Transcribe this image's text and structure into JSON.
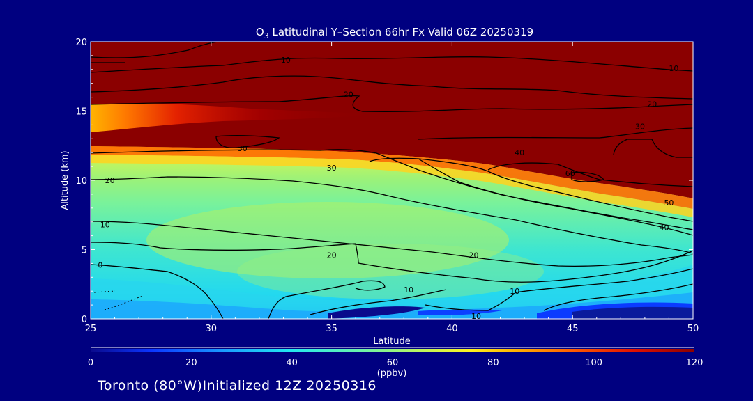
{
  "chart_data": {
    "type": "heatmap",
    "title_prefix": "O",
    "title_subscript": "3",
    "title_rest": " Latitudinal Y–Section 66hr  Fx Valid 06Z 20250319",
    "xlabel": "Latitude",
    "ylabel": "Altitude (km)",
    "xlim": [
      25,
      50
    ],
    "ylim": [
      0,
      20
    ],
    "x_ticks": [
      "25",
      "30",
      "35",
      "40",
      "45",
      "50"
    ],
    "y_ticks": [
      "0",
      "5",
      "10",
      "15",
      "20"
    ],
    "colorbar": {
      "ticks": [
        "0",
        "20",
        "40",
        "60",
        "80",
        "100",
        "120"
      ],
      "unit": "(ppbv)",
      "range": [
        0,
        120
      ],
      "colors": [
        "#0a0a8c",
        "#0b35ff",
        "#1a9bff",
        "#22e8f0",
        "#6df2a8",
        "#bff55a",
        "#fff21e",
        "#ffb400",
        "#ff5a00",
        "#e01000",
        "#8b0000"
      ]
    },
    "contour_labels": [
      {
        "text": "10",
        "lat": 41.0,
        "alt": 0.2
      },
      {
        "text": "10",
        "lat": 38.2,
        "alt": 2.1
      },
      {
        "text": "10",
        "lat": 42.6,
        "alt": 2.0
      },
      {
        "text": "0",
        "lat": 25.4,
        "alt": 3.9
      },
      {
        "text": "10",
        "lat": 25.6,
        "alt": 6.8
      },
      {
        "text": "20",
        "lat": 25.8,
        "alt": 10.0
      },
      {
        "text": "20",
        "lat": 35.0,
        "alt": 4.6
      },
      {
        "text": "20",
        "lat": 40.9,
        "alt": 4.6
      },
      {
        "text": "30",
        "lat": 35.0,
        "alt": 10.9
      },
      {
        "text": "30",
        "lat": 31.3,
        "alt": 12.3
      },
      {
        "text": "30",
        "lat": 47.8,
        "alt": 13.9
      },
      {
        "text": "40",
        "lat": 42.8,
        "alt": 12.0
      },
      {
        "text": "40",
        "lat": 48.8,
        "alt": 6.6
      },
      {
        "text": "50",
        "lat": 49.0,
        "alt": 8.4
      },
      {
        "text": "60",
        "lat": 44.9,
        "alt": 10.5
      },
      {
        "text": "20",
        "lat": 35.7,
        "alt": 16.2
      },
      {
        "text": "20",
        "lat": 48.3,
        "alt": 15.5
      },
      {
        "text": "10",
        "lat": 33.1,
        "alt": 18.7
      },
      {
        "text": "10",
        "lat": 49.2,
        "alt": 18.1
      }
    ]
  },
  "footer": "Toronto (80°W)Initialized 12Z 20250316"
}
